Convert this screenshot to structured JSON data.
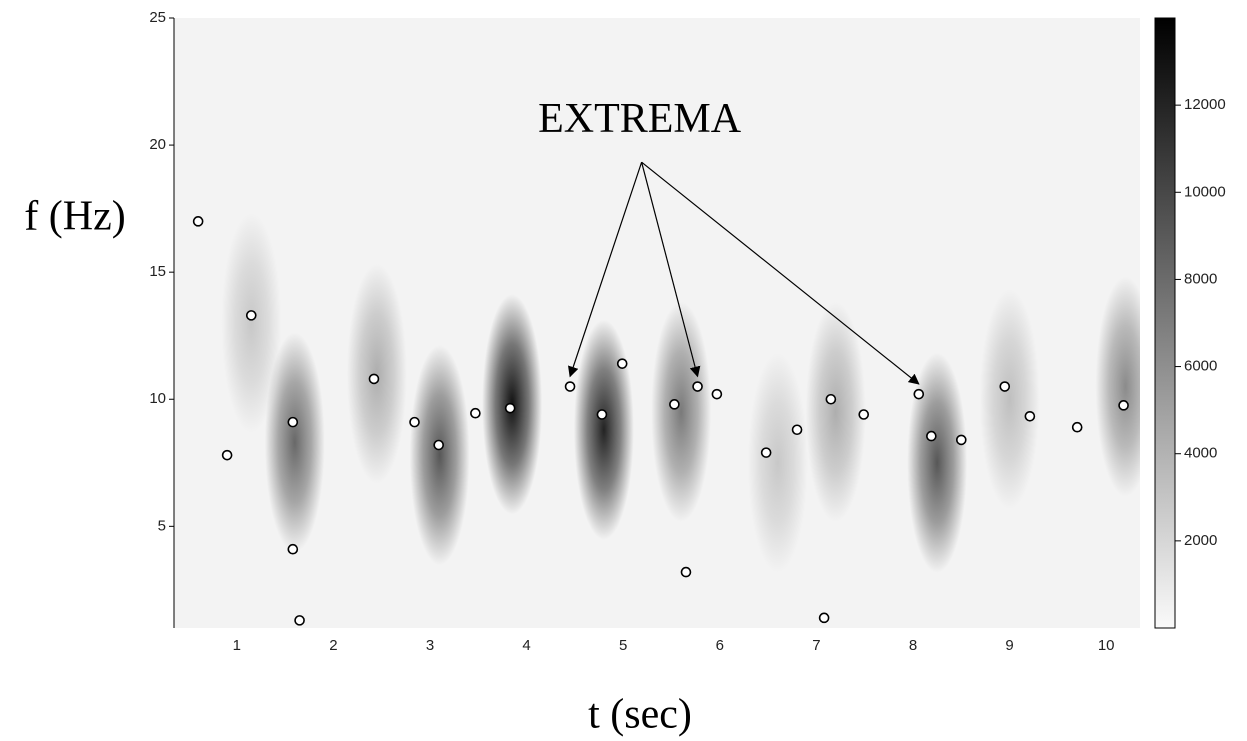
{
  "chart_data": {
    "type": "spectrogram",
    "x_label": "t (sec)",
    "y_label": "f (Hz)",
    "xlim": [
      0.35,
      10.35
    ],
    "ylim": [
      1,
      25
    ],
    "xticks": [
      1,
      2,
      3,
      4,
      5,
      6,
      7,
      8,
      9,
      10
    ],
    "yticks": [
      5,
      10,
      15,
      20,
      25
    ],
    "colorbar": {
      "clim": [
        0,
        14000
      ],
      "ticks": [
        2000,
        4000,
        6000,
        8000,
        10000,
        12000
      ]
    },
    "heatmap": {
      "t": [
        3.85,
        4.8,
        3.1,
        1.6,
        5.6,
        8.25,
        10.2,
        2.45,
        7.2,
        1.15,
        6.6,
        9.0
      ],
      "f": [
        9.8,
        8.8,
        7.8,
        8.3,
        9.5,
        7.5,
        10.5,
        11,
        9.5,
        13,
        7.5,
        10
      ],
      "values": [
        13000,
        12000,
        9000,
        8000,
        7000,
        9000,
        6000,
        4000,
        4000,
        2500,
        2500,
        3000
      ]
    },
    "series": [
      {
        "name": "extrema",
        "x": [
          0.6,
          0.9,
          1.15,
          1.58,
          1.58,
          1.65,
          2.42,
          2.84,
          3.09,
          3.47,
          3.83,
          4.45,
          4.78,
          4.99,
          5.53,
          5.65,
          5.77,
          5.97,
          6.48,
          6.8,
          7.08,
          7.15,
          7.49,
          8.06,
          8.19,
          8.5,
          8.95,
          9.21,
          9.7,
          10.18
        ],
        "values": [
          17,
          7.8,
          13.3,
          9.1,
          4.1,
          1.3,
          10.8,
          9.1,
          8.2,
          9.45,
          9.65,
          10.5,
          9.4,
          11.4,
          9.8,
          3.2,
          10.5,
          10.2,
          7.9,
          8.8,
          1.4,
          10,
          9.4,
          10.2,
          8.55,
          8.4,
          10.5,
          9.33,
          8.9,
          9.76
        ]
      }
    ],
    "annotation": {
      "text": "EXTREMA",
      "x": 5.17,
      "y": 20.9,
      "arrows": [
        [
          4.45,
          10.9
        ],
        [
          5.77,
          10.9
        ],
        [
          8.06,
          10.6
        ]
      ]
    }
  }
}
